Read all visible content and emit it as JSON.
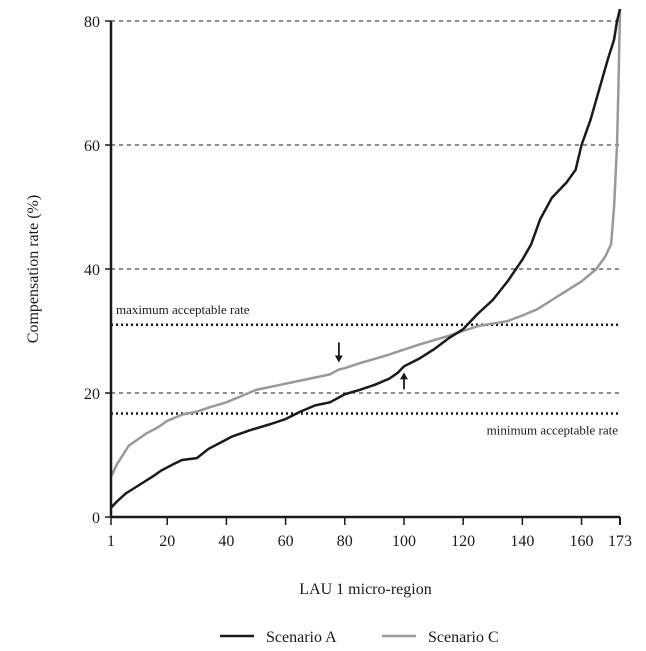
{
  "chart_data": {
    "type": "line",
    "title": "",
    "xlabel": "LAU 1 micro-region",
    "ylabel": "Compensation rate (%)",
    "xlim": [
      1,
      173
    ],
    "ylim": [
      0,
      80
    ],
    "x_ticks": [
      1,
      20,
      40,
      60,
      80,
      100,
      120,
      140,
      160,
      173
    ],
    "y_ticks": [
      0,
      20,
      40,
      60,
      80
    ],
    "dashed_gridlines_y": [
      20,
      40,
      60,
      80
    ],
    "legend_position": "bottom",
    "series": [
      {
        "name": "Scenario A",
        "color": "#1a1a1a",
        "points": [
          [
            1,
            1.5
          ],
          [
            3,
            2.5
          ],
          [
            6,
            3.8
          ],
          [
            10,
            5.0
          ],
          [
            15,
            6.5
          ],
          [
            18,
            7.5
          ],
          [
            22,
            8.5
          ],
          [
            25,
            9.2
          ],
          [
            30,
            9.5
          ],
          [
            34,
            11.0
          ],
          [
            38,
            12.0
          ],
          [
            42,
            13.0
          ],
          [
            48,
            14.0
          ],
          [
            55,
            15.0
          ],
          [
            60,
            15.8
          ],
          [
            65,
            17.0
          ],
          [
            70,
            18.0
          ],
          [
            75,
            18.5
          ],
          [
            80,
            19.8
          ],
          [
            85,
            20.5
          ],
          [
            90,
            21.3
          ],
          [
            95,
            22.3
          ],
          [
            98,
            23.3
          ],
          [
            100,
            24.3
          ],
          [
            105,
            25.5
          ],
          [
            110,
            27.0
          ],
          [
            115,
            28.8
          ],
          [
            120,
            30.3
          ],
          [
            125,
            32.8
          ],
          [
            130,
            35.0
          ],
          [
            135,
            38.0
          ],
          [
            140,
            41.5
          ],
          [
            143,
            44.0
          ],
          [
            146,
            48.0
          ],
          [
            150,
            51.5
          ],
          [
            155,
            54.0
          ],
          [
            158,
            56.0
          ],
          [
            160,
            60.0
          ],
          [
            163,
            64.0
          ],
          [
            166,
            69.0
          ],
          [
            169,
            74.0
          ],
          [
            171,
            77.0
          ],
          [
            172,
            80.0
          ],
          [
            173,
            82.0
          ]
        ]
      },
      {
        "name": "Scenario C",
        "color": "#999999",
        "points": [
          [
            1,
            6.5
          ],
          [
            3,
            8.5
          ],
          [
            5,
            10.0
          ],
          [
            7,
            11.5
          ],
          [
            10,
            12.5
          ],
          [
            13,
            13.5
          ],
          [
            17,
            14.5
          ],
          [
            20,
            15.5
          ],
          [
            25,
            16.5
          ],
          [
            30,
            17.0
          ],
          [
            35,
            17.8
          ],
          [
            40,
            18.5
          ],
          [
            45,
            19.5
          ],
          [
            50,
            20.5
          ],
          [
            55,
            21.0
          ],
          [
            60,
            21.5
          ],
          [
            65,
            22.0
          ],
          [
            70,
            22.5
          ],
          [
            75,
            23.0
          ],
          [
            78,
            23.8
          ],
          [
            80,
            24.0
          ],
          [
            85,
            24.8
          ],
          [
            90,
            25.5
          ],
          [
            95,
            26.2
          ],
          [
            100,
            27.0
          ],
          [
            105,
            27.8
          ],
          [
            110,
            28.5
          ],
          [
            115,
            29.2
          ],
          [
            120,
            30.0
          ],
          [
            125,
            30.8
          ],
          [
            130,
            31.2
          ],
          [
            135,
            31.6
          ],
          [
            140,
            32.5
          ],
          [
            145,
            33.5
          ],
          [
            150,
            35.0
          ],
          [
            155,
            36.5
          ],
          [
            160,
            38.0
          ],
          [
            165,
            40.0
          ],
          [
            168,
            42.0
          ],
          [
            170,
            44.0
          ],
          [
            171,
            50.0
          ],
          [
            172,
            60.0
          ],
          [
            172.5,
            70.0
          ],
          [
            173,
            82.0
          ]
        ]
      }
    ],
    "reference_lines": [
      {
        "label": "maximum acceptable rate",
        "y": 31,
        "label_position": "above-left"
      },
      {
        "label": "minimum acceptable rate",
        "y": 16.7,
        "label_position": "below-right"
      }
    ],
    "arrows": [
      {
        "x": 78,
        "y": 23.8,
        "direction": "down"
      },
      {
        "x": 100,
        "y": 24.3,
        "direction": "up"
      }
    ]
  }
}
